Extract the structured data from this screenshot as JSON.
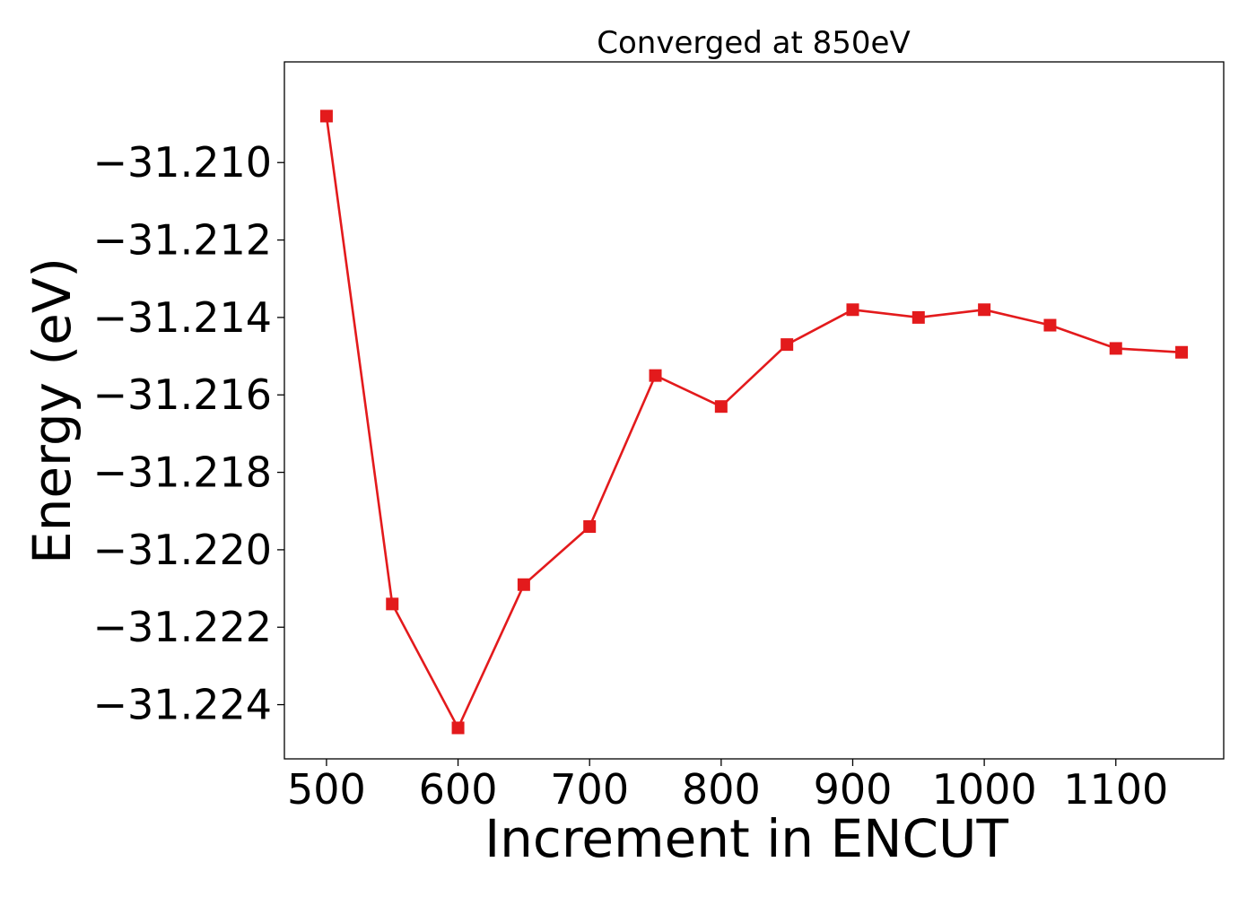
{
  "chart_data": {
    "type": "line",
    "title": "Converged at 850eV",
    "xlabel": "Increment in ENCUT",
    "ylabel": "Energy (eV)",
    "xlim": [
      468,
      1182
    ],
    "ylim": [
      -31.2254,
      -31.2074
    ],
    "x_ticks": [
      500,
      600,
      700,
      800,
      900,
      1000,
      1100
    ],
    "x_tick_labels": [
      "500",
      "600",
      "700",
      "800",
      "900",
      "1000",
      "1100"
    ],
    "y_ticks": [
      -31.21,
      -31.212,
      -31.214,
      -31.216,
      -31.218,
      -31.22,
      -31.222,
      -31.224
    ],
    "y_tick_labels": [
      "−31.210",
      "−31.212",
      "−31.214",
      "−31.216",
      "−31.218",
      "−31.220",
      "−31.222",
      "−31.224"
    ],
    "grid": false,
    "series": [
      {
        "color": "#e31a1c",
        "marker": "square",
        "x": [
          500,
          550,
          600,
          650,
          700,
          750,
          800,
          850,
          900,
          950,
          1000,
          1050,
          1100,
          1150
        ],
        "y": [
          -31.2088,
          -31.2214,
          -31.2246,
          -31.2209,
          -31.2194,
          -31.2155,
          -31.2163,
          -31.2147,
          -31.2138,
          -31.214,
          -31.2138,
          -31.2142,
          -31.2148,
          -31.2149
        ]
      }
    ]
  }
}
